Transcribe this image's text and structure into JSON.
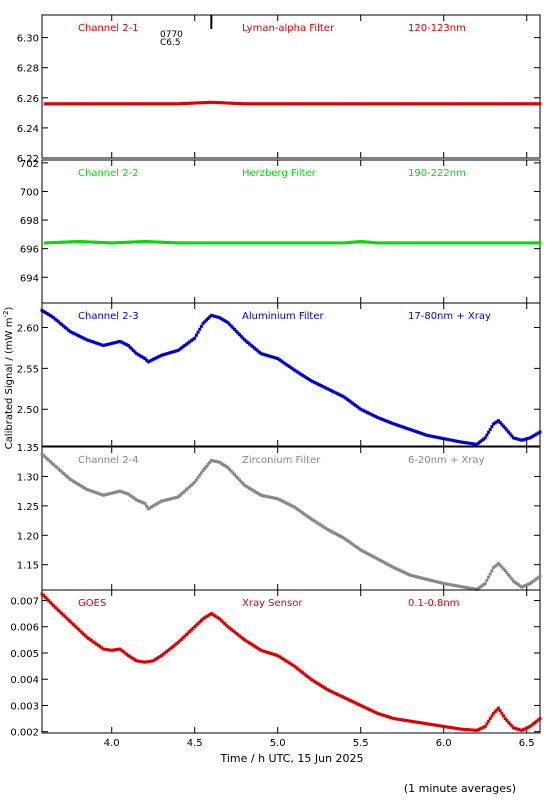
{
  "chart_data": {
    "type": "scatter",
    "xlabel": "Time / h UTC, 15 Jun 2025",
    "ylabel": "Calibrated Signal / (mW m",
    "ylabel_sup": "-2",
    "ylabel_end": ")",
    "footnote": "(1 minute averages)",
    "xlim": [
      3.58,
      6.58
    ],
    "xticks": [
      "4.0",
      "4.5",
      "5.0",
      "5.5",
      "6.0",
      "6.5"
    ],
    "xtick_values": [
      4.0,
      4.5,
      5.0,
      5.5,
      6.0,
      6.5
    ],
    "event_marker": {
      "x": 4.6,
      "label_lines": [
        "0770",
        "C6.5"
      ]
    },
    "panels": [
      {
        "channel": "Channel 2-1",
        "filter": "Lyman-alpha Filter",
        "band": "120-123nm",
        "color": "#dd0000",
        "ylim": [
          6.22,
          6.315
        ],
        "yticks": [
          "6.22",
          "6.24",
          "6.26",
          "6.28",
          "6.30"
        ],
        "ytick_values": [
          6.22,
          6.24,
          6.26,
          6.28,
          6.3
        ],
        "series": {
          "x": [
            3.6,
            3.8,
            4.0,
            4.2,
            4.4,
            4.6,
            4.8,
            5.0,
            5.2,
            5.4,
            5.6,
            5.8,
            6.0,
            6.2,
            6.4,
            6.58
          ],
          "y": [
            6.256,
            6.256,
            6.256,
            6.256,
            6.256,
            6.257,
            6.256,
            6.256,
            6.256,
            6.256,
            6.256,
            6.256,
            6.256,
            6.256,
            6.256,
            6.256
          ]
        }
      },
      {
        "channel": "Channel 2-2",
        "filter": "Herzberg Filter",
        "band": "190-222nm",
        "color": "#00dd00",
        "ylim": [
          692.2,
          702.2
        ],
        "yticks": [
          "694",
          "696",
          "698",
          "700",
          "702"
        ],
        "ytick_values": [
          694,
          696,
          698,
          700,
          702
        ],
        "series": {
          "x": [
            3.6,
            3.8,
            4.0,
            4.2,
            4.4,
            4.6,
            4.8,
            5.0,
            5.2,
            5.4,
            5.5,
            5.6,
            5.8,
            6.0,
            6.2,
            6.4,
            6.58
          ],
          "y": [
            696.4,
            696.5,
            696.4,
            696.5,
            696.4,
            696.4,
            696.4,
            696.4,
            696.4,
            696.4,
            696.5,
            696.4,
            696.4,
            696.4,
            696.4,
            696.4,
            696.4
          ]
        }
      },
      {
        "channel": "Channel 2-3",
        "filter": "Aluminium Filter",
        "band": "17-80nm + Xray",
        "color": "#0000cc",
        "ylim": [
          2.455,
          2.63
        ],
        "yticks": [
          "2.50",
          "2.55",
          "2.60"
        ],
        "ytick_values": [
          2.5,
          2.55,
          2.6
        ],
        "series": {
          "x": [
            3.58,
            3.65,
            3.75,
            3.85,
            3.95,
            4.05,
            4.1,
            4.15,
            4.2,
            4.22,
            4.3,
            4.4,
            4.5,
            4.55,
            4.6,
            4.65,
            4.7,
            4.8,
            4.9,
            5.0,
            5.1,
            5.2,
            5.3,
            5.4,
            5.5,
            5.6,
            5.7,
            5.8,
            5.9,
            6.0,
            6.1,
            6.2,
            6.25,
            6.3,
            6.33,
            6.37,
            6.42,
            6.47,
            6.52,
            6.58
          ],
          "y": [
            2.621,
            2.612,
            2.595,
            2.585,
            2.578,
            2.583,
            2.578,
            2.568,
            2.562,
            2.558,
            2.566,
            2.572,
            2.587,
            2.605,
            2.615,
            2.612,
            2.606,
            2.585,
            2.568,
            2.562,
            2.548,
            2.535,
            2.525,
            2.515,
            2.5,
            2.49,
            2.482,
            2.475,
            2.468,
            2.464,
            2.46,
            2.457,
            2.465,
            2.482,
            2.486,
            2.477,
            2.465,
            2.462,
            2.465,
            2.472
          ]
        }
      },
      {
        "channel": "Channel 2-4",
        "filter": "Zirconium Filter",
        "band": "6-20nm + Xray",
        "color": "#888888",
        "ylim": [
          1.107,
          1.35
        ],
        "yticks": [
          "1.15",
          "1.20",
          "1.25",
          "1.30",
          "1.35"
        ],
        "ytick_values": [
          1.15,
          1.2,
          1.25,
          1.3,
          1.35
        ],
        "series": {
          "x": [
            3.58,
            3.65,
            3.75,
            3.85,
            3.95,
            4.05,
            4.1,
            4.15,
            4.2,
            4.22,
            4.3,
            4.4,
            4.5,
            4.55,
            4.6,
            4.65,
            4.7,
            4.8,
            4.9,
            5.0,
            5.1,
            5.2,
            5.3,
            5.4,
            5.5,
            5.6,
            5.7,
            5.8,
            5.9,
            6.0,
            6.1,
            6.2,
            6.25,
            6.3,
            6.33,
            6.37,
            6.42,
            6.47,
            6.52,
            6.58
          ],
          "y": [
            1.338,
            1.32,
            1.295,
            1.278,
            1.268,
            1.275,
            1.27,
            1.26,
            1.254,
            1.245,
            1.258,
            1.265,
            1.29,
            1.31,
            1.327,
            1.324,
            1.315,
            1.285,
            1.268,
            1.262,
            1.248,
            1.228,
            1.21,
            1.195,
            1.175,
            1.16,
            1.145,
            1.132,
            1.125,
            1.118,
            1.113,
            1.108,
            1.118,
            1.145,
            1.152,
            1.14,
            1.122,
            1.112,
            1.118,
            1.13
          ]
        }
      },
      {
        "channel": "GOES",
        "filter": "Xray Sensor",
        "band": "0.1-0.8nm",
        "color": "#dd0000",
        "ylim": [
          0.00195,
          0.0074
        ],
        "yticks": [
          "0.002",
          "0.003",
          "0.004",
          "0.005",
          "0.006",
          "0.007"
        ],
        "ytick_values": [
          0.002,
          0.003,
          0.004,
          0.005,
          0.006,
          0.007
        ],
        "series": {
          "x": [
            3.58,
            3.65,
            3.75,
            3.85,
            3.95,
            4.0,
            4.05,
            4.1,
            4.15,
            4.2,
            4.25,
            4.3,
            4.4,
            4.5,
            4.55,
            4.6,
            4.65,
            4.7,
            4.8,
            4.9,
            5.0,
            5.1,
            5.2,
            5.3,
            5.4,
            5.5,
            5.6,
            5.7,
            5.8,
            5.9,
            6.0,
            6.1,
            6.2,
            6.25,
            6.3,
            6.33,
            6.37,
            6.42,
            6.47,
            6.52,
            6.58
          ],
          "y": [
            0.00725,
            0.0068,
            0.0062,
            0.0056,
            0.00515,
            0.0051,
            0.00515,
            0.0049,
            0.0047,
            0.00465,
            0.0047,
            0.0049,
            0.0054,
            0.006,
            0.0063,
            0.0065,
            0.0063,
            0.006,
            0.0055,
            0.0051,
            0.0049,
            0.0045,
            0.004,
            0.0036,
            0.0033,
            0.003,
            0.0027,
            0.0025,
            0.0024,
            0.0023,
            0.0022,
            0.0021,
            0.00205,
            0.0022,
            0.0027,
            0.0029,
            0.0025,
            0.00215,
            0.00205,
            0.0022,
            0.0025
          ]
        }
      }
    ]
  }
}
